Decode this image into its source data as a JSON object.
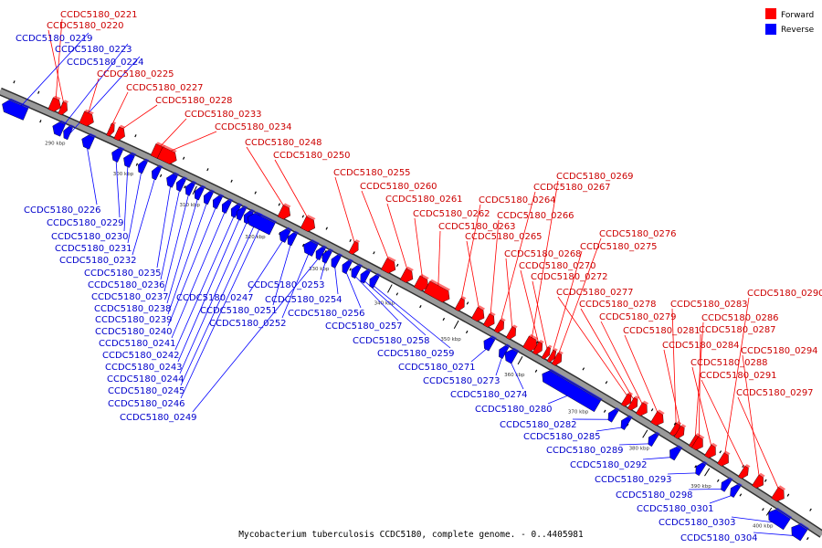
{
  "colors": {
    "forward": "#ff0000",
    "reverse": "#0000ff",
    "forward_label": "#cc0000",
    "reverse_label": "#0000cc",
    "backbone": "#9a9a9a",
    "backbone_shadow": "#303030"
  },
  "legend": [
    {
      "label": "Forward",
      "color": "#ff0000"
    },
    {
      "label": "Reverse",
      "color": "#0000ff"
    }
  ],
  "caption": "Mycobacterium tuberculosis CCDC5180, complete genome. - 0..4405981",
  "scale_ticks": [
    "290 kbp",
    "300 kbp",
    "310 kbp",
    "320 kbp",
    "330 kbp",
    "340 kbp",
    "350 kbp",
    "360 kbp",
    "370 kbp",
    "380 kbp",
    "390 kbp",
    "400 kbp"
  ],
  "forward_labels": [
    "CCDC5180_0221",
    "CCDC5180_0220",
    "CCDC5180_0225",
    "CCDC5180_0227",
    "CCDC5180_0228",
    "CCDC5180_0233",
    "CCDC5180_0234",
    "CCDC5180_0248",
    "CCDC5180_0250",
    "CCDC5180_0255",
    "CCDC5180_0260",
    "CCDC5180_0261",
    "CCDC5180_0262",
    "CCDC5180_0263",
    "CCDC5180_0264",
    "CCDC5180_0265",
    "CCDC5180_0266",
    "CCDC5180_0267",
    "CCDC5180_0268",
    "CCDC5180_0269",
    "CCDC5180_0270",
    "CCDC5180_0272",
    "CCDC5180_0275",
    "CCDC5180_0276",
    "CCDC5180_0277",
    "CCDC5180_0278",
    "CCDC5180_0279",
    "CCDC5180_0281",
    "CCDC5180_0283",
    "CCDC5180_0284",
    "CCDC5180_0286",
    "CCDC5180_0287",
    "CCDC5180_0288",
    "CCDC5180_0290",
    "CCDC5180_0291",
    "CCDC5180_0294",
    "CCDC5180_0297"
  ],
  "reverse_labels": [
    "CCDC5180_0219",
    "CCDC5180_0223",
    "CCDC5180_0224",
    "CCDC5180_0226",
    "CCDC5180_0229",
    "CCDC5180_0230",
    "CCDC5180_0231",
    "CCDC5180_0232",
    "CCDC5180_0235",
    "CCDC5180_0236",
    "CCDC5180_0237",
    "CCDC5180_0238",
    "CCDC5180_0239",
    "CCDC5180_0240",
    "CCDC5180_0241",
    "CCDC5180_0242",
    "CCDC5180_0243",
    "CCDC5180_0244",
    "CCDC5180_0245",
    "CCDC5180_0246",
    "CCDC5180_0247",
    "CCDC5180_0249",
    "CCDC5180_0251",
    "CCDC5180_0252",
    "CCDC5180_0253",
    "CCDC5180_0254",
    "CCDC5180_0256",
    "CCDC5180_0257",
    "CCDC5180_0258",
    "CCDC5180_0259",
    "CCDC5180_0271",
    "CCDC5180_0273",
    "CCDC5180_0274",
    "CCDC5180_0280",
    "CCDC5180_0282",
    "CCDC5180_0285",
    "CCDC5180_0289",
    "CCDC5180_0292",
    "CCDC5180_0293",
    "CCDC5180_0298",
    "CCDC5180_0301",
    "CCDC5180_0303",
    "CCDC5180_0304"
  ]
}
